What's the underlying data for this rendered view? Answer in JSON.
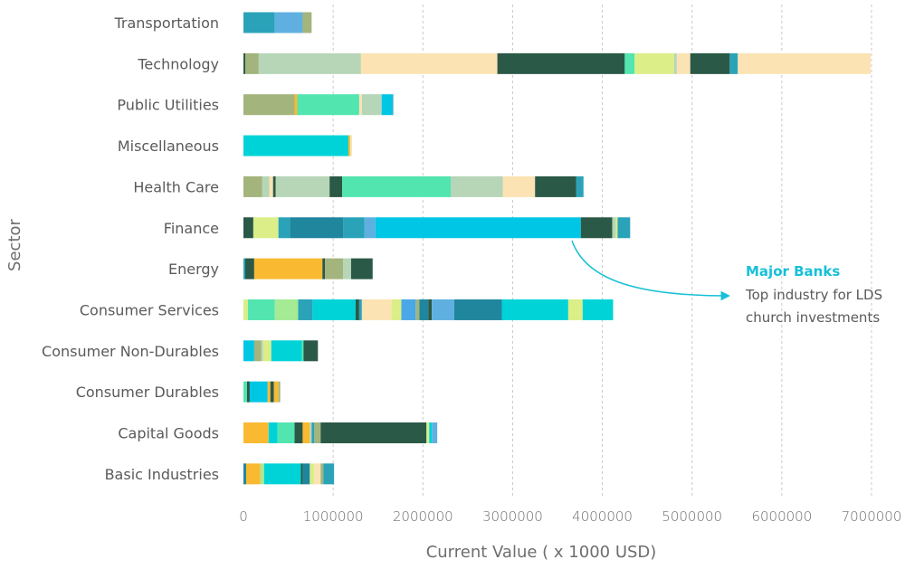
{
  "chart_data": {
    "type": "bar",
    "orientation": "horizontal",
    "stacked": true,
    "xlabel": "Current Value ( x 1000 USD)",
    "ylabel": "Sector",
    "xlim": [
      0,
      7000000
    ],
    "xticks": [
      0,
      1000000,
      2000000,
      3000000,
      4000000,
      5000000,
      6000000,
      7000000
    ],
    "xtick_labels": [
      "0",
      "1000000",
      "2000000",
      "3000000",
      "4000000",
      "5000000",
      "6000000",
      "7000000"
    ],
    "grid": "vertical-dashed",
    "legend": "none",
    "categories": [
      "Transportation",
      "Technology",
      "Public Utilities",
      "Miscellaneous",
      "Health Care",
      "Finance",
      "Energy",
      "Consumer Services",
      "Consumer Non-Durables",
      "Consumer Durables",
      "Capital Goods",
      "Basic Industries"
    ],
    "palette": [
      "#2aa3b9",
      "#5fb0e0",
      "#a3b47c",
      "#b6d6b7",
      "#fbe3b3",
      "#2b5947",
      "#52e5b0",
      "#dbee88",
      "#00d3d7",
      "#f9ba32",
      "#20869e",
      "#00c6e6",
      "#a5ea94",
      "#4aa8e6"
    ],
    "segments": [
      [
        [
          350000,
          0
        ],
        [
          310000,
          1
        ],
        [
          100000,
          2
        ]
      ],
      [
        [
          20000,
          5
        ],
        [
          150000,
          2
        ],
        [
          1140000,
          3
        ],
        [
          1520000,
          4
        ],
        [
          1420000,
          5
        ],
        [
          110000,
          6
        ],
        [
          440000,
          7
        ],
        [
          30000,
          3
        ],
        [
          150000,
          4
        ],
        [
          440000,
          5
        ],
        [
          90000,
          0
        ],
        [
          1480000,
          4
        ]
      ],
      [
        [
          570000,
          2
        ],
        [
          30000,
          9
        ],
        [
          690000,
          6
        ],
        [
          30000,
          4
        ],
        [
          220000,
          3
        ],
        [
          120000,
          11
        ],
        [
          10000,
          0
        ]
      ],
      [
        [
          1170000,
          8
        ],
        [
          20000,
          9
        ],
        [
          20000,
          4
        ]
      ],
      [
        [
          210000,
          2
        ],
        [
          80000,
          3
        ],
        [
          40000,
          4
        ],
        [
          30000,
          5
        ],
        [
          600000,
          3
        ],
        [
          140000,
          5
        ],
        [
          1210000,
          6
        ],
        [
          580000,
          3
        ],
        [
          360000,
          4
        ],
        [
          460000,
          5
        ],
        [
          80000,
          0
        ]
      ],
      [
        [
          110000,
          5
        ],
        [
          280000,
          7
        ],
        [
          130000,
          0
        ],
        [
          590000,
          10
        ],
        [
          240000,
          0
        ],
        [
          120000,
          1
        ],
        [
          2290000,
          11
        ],
        [
          350000,
          5
        ],
        [
          40000,
          3
        ],
        [
          20000,
          7
        ],
        [
          140000,
          0
        ]
      ],
      [
        [
          20000,
          0
        ],
        [
          100000,
          5
        ],
        [
          760000,
          9
        ],
        [
          30000,
          5
        ],
        [
          200000,
          2
        ],
        [
          90000,
          3
        ],
        [
          240000,
          5
        ]
      ],
      [
        [
          50000,
          7
        ],
        [
          300000,
          6
        ],
        [
          260000,
          12
        ],
        [
          160000,
          0
        ],
        [
          480000,
          8
        ],
        [
          40000,
          5
        ],
        [
          30000,
          0
        ],
        [
          330000,
          4
        ],
        [
          110000,
          7
        ],
        [
          160000,
          13
        ],
        [
          40000,
          2
        ],
        [
          100000,
          10
        ],
        [
          40000,
          5
        ],
        [
          250000,
          1
        ],
        [
          530000,
          10
        ],
        [
          740000,
          8
        ],
        [
          160000,
          7
        ],
        [
          340000,
          8
        ]
      ],
      [
        [
          120000,
          11
        ],
        [
          80000,
          2
        ],
        [
          20000,
          3
        ],
        [
          90000,
          7
        ],
        [
          340000,
          8
        ],
        [
          20000,
          6
        ],
        [
          160000,
          5
        ]
      ],
      [
        [
          40000,
          6
        ],
        [
          30000,
          5
        ],
        [
          200000,
          11
        ],
        [
          30000,
          9
        ],
        [
          40000,
          5
        ],
        [
          50000,
          9
        ],
        [
          20000,
          2
        ]
      ],
      [
        [
          280000,
          9
        ],
        [
          100000,
          8
        ],
        [
          190000,
          6
        ],
        [
          90000,
          5
        ],
        [
          80000,
          9
        ],
        [
          20000,
          3
        ],
        [
          30000,
          0
        ],
        [
          70000,
          2
        ],
        [
          1180000,
          5
        ],
        [
          30000,
          7
        ],
        [
          30000,
          8
        ],
        [
          60000,
          1
        ]
      ],
      [
        [
          30000,
          10
        ],
        [
          160000,
          9
        ],
        [
          40000,
          12
        ],
        [
          410000,
          8
        ],
        [
          20000,
          5
        ],
        [
          80000,
          10
        ],
        [
          50000,
          7
        ],
        [
          70000,
          4
        ],
        [
          30000,
          2
        ],
        [
          120000,
          0
        ]
      ]
    ],
    "annotation": {
      "title": "Major Banks",
      "text_lines": [
        "Top industry for LDS",
        "church investments"
      ],
      "target_category": "Finance",
      "color": "#16c0d8"
    }
  }
}
